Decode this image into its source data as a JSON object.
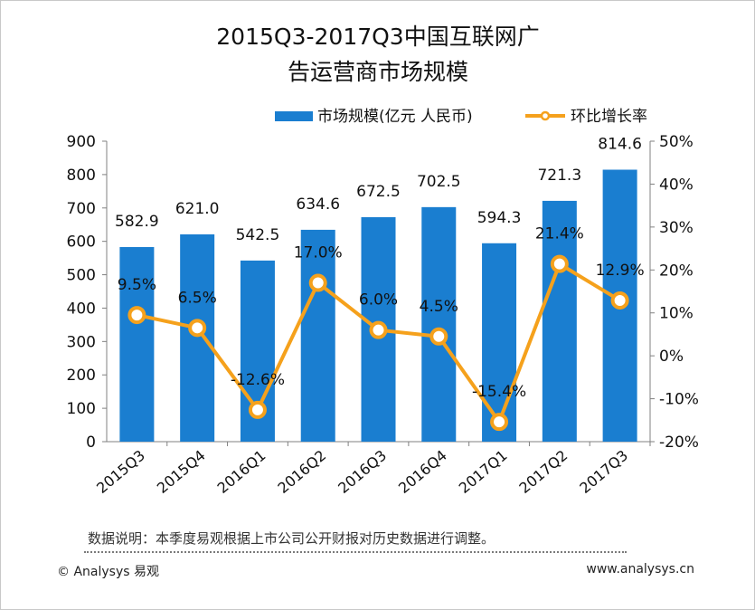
{
  "chart_data": {
    "type": "bar+line",
    "title": "2015Q3-2017Q3中国互联网广告运营商市场规模",
    "categories": [
      "2015Q3",
      "2015Q4",
      "2016Q1",
      "2016Q2",
      "2016Q3",
      "2016Q4",
      "2017Q1",
      "2017Q2",
      "2017Q3"
    ],
    "series": [
      {
        "name": "市场规模(亿元 人民币)",
        "type": "bar",
        "axis": "left",
        "color": "#1a7ed0",
        "values": [
          582.9,
          621.0,
          542.5,
          634.6,
          672.5,
          702.5,
          594.3,
          721.3,
          814.6
        ],
        "labels": [
          "582.9",
          "621.0",
          "542.5",
          "634.6",
          "672.5",
          "702.5",
          "594.3",
          "721.3",
          "814.6"
        ]
      },
      {
        "name": "环比增长率",
        "type": "line",
        "axis": "right",
        "color": "#f5a11c",
        "values": [
          9.5,
          6.5,
          -12.6,
          17.0,
          6.0,
          4.5,
          -15.4,
          21.4,
          12.9
        ],
        "labels": [
          "9.5%",
          "6.5%",
          "-12.6%",
          "17.0%",
          "6.0%",
          "4.5%",
          "-15.4%",
          "21.4%",
          "12.9%"
        ]
      }
    ],
    "ylim_left": [
      0,
      900
    ],
    "yticks_left": [
      "0",
      "100",
      "200",
      "300",
      "400",
      "500",
      "600",
      "700",
      "800",
      "900"
    ],
    "ylim_right": [
      -20,
      50
    ],
    "yticks_right": [
      "-20%",
      "-10%",
      "0%",
      "10%",
      "20%",
      "30%",
      "40%",
      "50%"
    ],
    "legend_position": "top-right",
    "grid": false
  },
  "footer": {
    "note": "数据说明：本季度易观根据上市公司公开财报对历史数据进行调整。",
    "copyright": "© Analysys 易观",
    "website": "www.analysys.cn"
  }
}
